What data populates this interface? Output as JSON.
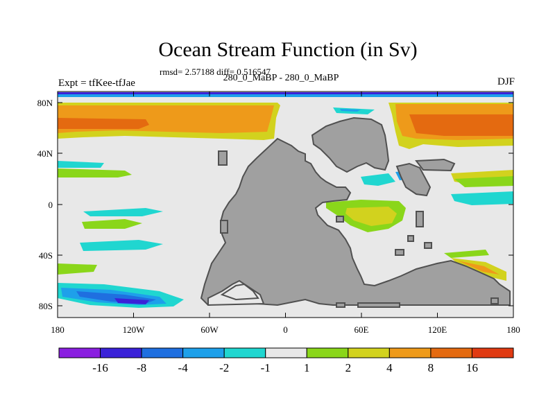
{
  "title": "Ocean Stream Function (in Sv)",
  "stats": "rmsd= 2.57188 diff= 0.516547",
  "subtitle": "280_0_MaBP - 280_0_MaBP",
  "left_label": "Expt = tfKee-tfJae",
  "right_label": "DJF",
  "x_ticks": [
    "180",
    "120W",
    "60W",
    "0",
    "60E",
    "120E",
    "180"
  ],
  "y_ticks": [
    "80N",
    "40N",
    "0",
    "40S",
    "80S"
  ],
  "colorbar": {
    "labels": [
      "-16",
      "-8",
      "-4",
      "-2",
      "-1",
      "1",
      "2",
      "4",
      "8",
      "16"
    ],
    "colors": [
      "#8a1fe0",
      "#3a22d8",
      "#1f6fe0",
      "#1ea0ea",
      "#20d6d0",
      "#e8e8e8",
      "#8ad61a",
      "#d2d21e",
      "#ee9a1a",
      "#e46a10",
      "#e03a12"
    ]
  },
  "colors": {
    "land": "#a0a0a0",
    "ocean_background": "#e8e8e8"
  }
}
